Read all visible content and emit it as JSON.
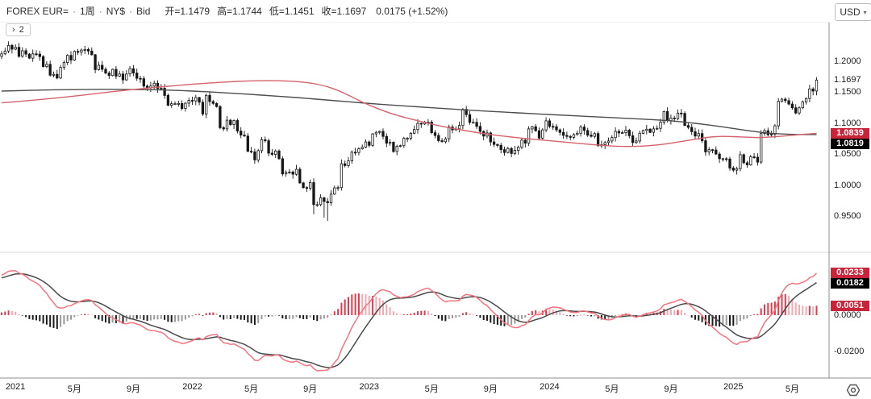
{
  "header": {
    "symbol": "FOREX EUR=",
    "sep": "·",
    "interval": "1周",
    "session": "NY$",
    "price_type": "Bid",
    "fields": [
      {
        "text": "开=1.1479"
      },
      {
        "text": "高=1.1744"
      },
      {
        "text": "低=1.1451"
      },
      {
        "text": "收=1.1697"
      }
    ],
    "change": "0.0175 (+1.52%)",
    "currency_selector": {
      "label": "USD",
      "chevron": "⌄"
    }
  },
  "pane_badge": {
    "chevron": "›",
    "count": "2"
  },
  "price_axis": {
    "current_label": "1.1697",
    "ma_badges": [
      {
        "text": "1.0839",
        "style": "red"
      },
      {
        "text": "1.0819",
        "style": "black"
      }
    ]
  },
  "macd_axis": {
    "badges": [
      {
        "text": "0.0233",
        "style": "red"
      },
      {
        "text": "0.0182",
        "style": "black"
      },
      {
        "text": "0.0051",
        "style": "red"
      }
    ]
  },
  "colors": {
    "badge_red": "#c9243a",
    "badge_black": "#000000",
    "candle": "#161616",
    "ma_red": "#d5626c",
    "ma_dark": "#4d4d4d",
    "macd_red": "#f4737e",
    "macd_dark": "#4a4a4a",
    "hist_pos_strong": "#e23b4d",
    "hist_pos_weak": "#f5a9b1",
    "hist_neg_strong": "#1c1c1c",
    "hist_neg_weak": "#9a9a9a",
    "axis_line": "#8f8f8f",
    "pane_divider": "#d8d8d8"
  },
  "chart_data": {
    "type": "candlestick",
    "title": "FOREX EUR= 1周 NY$ Bid",
    "interval": "weekly",
    "legend_position": "none",
    "grid": false,
    "price_pane": {
      "yticks": [
        1.2,
        1.15,
        1.1,
        1.05,
        1.0,
        0.95
      ],
      "ylim": [
        0.905,
        1.263
      ],
      "current_close": 1.1697,
      "last_candle": {
        "open": 1.1479,
        "high": 1.1744,
        "low": 1.1451,
        "close": 1.1697
      },
      "low_overrides": [
        {
          "index": 90,
          "low": 0.9535
        },
        {
          "index": 93,
          "low": 0.948
        },
        {
          "index": 94,
          "low": 0.943
        }
      ],
      "first_open": 1.208,
      "closes": [
        1.212,
        1.2165,
        1.2255,
        1.2195,
        1.2225,
        1.208,
        1.217,
        1.2115,
        1.205,
        1.212,
        1.2115,
        1.2075,
        1.1915,
        1.195,
        1.1775,
        1.179,
        1.173,
        1.19,
        1.198,
        1.2095,
        1.202,
        1.216,
        1.2145,
        1.218,
        1.219,
        1.2165,
        1.2105,
        1.1865,
        1.1935,
        1.187,
        1.181,
        1.177,
        1.187,
        1.176,
        1.1795,
        1.17,
        1.1795,
        1.188,
        1.181,
        1.1725,
        1.172,
        1.16,
        1.157,
        1.16,
        1.1645,
        1.156,
        1.1565,
        1.145,
        1.129,
        1.1315,
        1.1315,
        1.132,
        1.124,
        1.1325,
        1.137,
        1.136,
        1.1415,
        1.134,
        1.115,
        1.145,
        1.135,
        1.132,
        1.127,
        1.093,
        1.091,
        1.105,
        1.098,
        1.1045,
        1.0875,
        1.081,
        1.0795,
        1.055,
        1.054,
        1.041,
        1.056,
        1.0735,
        1.072,
        1.052,
        1.05,
        1.0555,
        1.043,
        1.0185,
        1.021,
        1.0215,
        1.018,
        1.026,
        1.004,
        0.9965,
        0.9955,
        1.0045,
        0.969,
        0.969,
        0.98,
        0.974,
        0.972,
        0.986,
        0.996,
        0.9965,
        1.035,
        1.032,
        1.0395,
        1.0535,
        1.053,
        1.059,
        1.0615,
        1.07,
        1.0645,
        1.083,
        1.0855,
        1.087,
        1.079,
        1.068,
        1.0695,
        1.0545,
        1.063,
        1.064,
        1.076,
        1.076,
        1.084,
        1.09,
        1.1,
        1.099,
        1.102,
        1.102,
        1.085,
        1.0805,
        1.072,
        1.0705,
        1.075,
        1.094,
        1.0895,
        1.091,
        1.0965,
        1.1225,
        1.114,
        1.1015,
        1.1015,
        1.095,
        1.087,
        1.0795,
        1.0845,
        1.07,
        1.066,
        1.0645,
        1.0575,
        1.053,
        1.0595,
        1.0515,
        1.0565,
        1.0615,
        1.073,
        1.068,
        1.091,
        1.0945,
        1.088,
        1.076,
        1.0895,
        1.104,
        1.095,
        1.0945,
        1.0895,
        1.0855,
        1.0805,
        1.079,
        1.0775,
        1.082,
        1.084,
        1.094,
        1.0885,
        1.081,
        1.079,
        1.0835,
        1.064,
        1.0655,
        1.069,
        1.0715,
        1.077,
        1.087,
        1.0845,
        1.085,
        1.089,
        1.08,
        1.069,
        1.0715,
        1.084,
        1.0885,
        1.0905,
        1.0855,
        1.091,
        1.092,
        1.102,
        1.119,
        1.1045,
        1.1085,
        1.1075,
        1.1165,
        1.116,
        1.0965,
        1.0935,
        1.0865,
        1.0795,
        1.0835,
        1.072,
        1.054,
        1.0575,
        1.057,
        1.0505,
        1.043,
        1.043,
        1.0425,
        1.028,
        1.0245,
        1.027,
        1.0495,
        1.0365,
        1.033,
        1.046,
        1.0455,
        1.0375,
        1.0835,
        1.088,
        1.0815,
        1.0825,
        1.096,
        1.1355,
        1.139,
        1.1365,
        1.131,
        1.125,
        1.1165,
        1.125,
        1.1345,
        1.14,
        1.1555,
        1.152,
        1.1697
      ],
      "ma_red": {
        "last_value": 1.0839,
        "control_points": [
          [
            0,
            1.133
          ],
          [
            8,
            1.1368
          ],
          [
            16,
            1.141
          ],
          [
            24,
            1.1458
          ],
          [
            32,
            1.151
          ],
          [
            40,
            1.1556
          ],
          [
            48,
            1.1598
          ],
          [
            56,
            1.1634
          ],
          [
            62,
            1.1656
          ],
          [
            68,
            1.1675
          ],
          [
            74,
            1.1686
          ],
          [
            80,
            1.1686
          ],
          [
            86,
            1.1668
          ],
          [
            91,
            1.163
          ],
          [
            95,
            1.157
          ],
          [
            99,
            1.148
          ],
          [
            103,
            1.137
          ],
          [
            107,
            1.127
          ],
          [
            112,
            1.1165
          ],
          [
            118,
            1.107
          ],
          [
            125,
            1.0975
          ],
          [
            133,
            1.089
          ],
          [
            141,
            1.082
          ],
          [
            149,
            1.0768
          ],
          [
            157,
            1.0725
          ],
          [
            165,
            1.0685
          ],
          [
            172,
            1.065
          ],
          [
            179,
            1.0628
          ],
          [
            186,
            1.0638
          ],
          [
            192,
            1.0672
          ],
          [
            198,
            1.0725
          ],
          [
            203,
            1.077
          ],
          [
            207,
            1.0788
          ],
          [
            211,
            1.0786
          ],
          [
            215,
            1.0776
          ],
          [
            219,
            1.0772
          ],
          [
            223,
            1.0784
          ],
          [
            227,
            1.0802
          ],
          [
            231,
            1.0822
          ],
          [
            235,
            1.0839
          ]
        ]
      },
      "ma_dark": {
        "last_value": 1.0819,
        "control_points": [
          [
            0,
            1.152
          ],
          [
            15,
            1.154
          ],
          [
            30,
            1.1548
          ],
          [
            45,
            1.154
          ],
          [
            55,
            1.152
          ],
          [
            65,
            1.149
          ],
          [
            75,
            1.1455
          ],
          [
            85,
            1.1415
          ],
          [
            95,
            1.137
          ],
          [
            105,
            1.1325
          ],
          [
            115,
            1.1285
          ],
          [
            125,
            1.1248
          ],
          [
            135,
            1.1212
          ],
          [
            145,
            1.118
          ],
          [
            155,
            1.115
          ],
          [
            165,
            1.1122
          ],
          [
            175,
            1.1095
          ],
          [
            185,
            1.1068
          ],
          [
            193,
            1.104
          ],
          [
            200,
            1.1
          ],
          [
            207,
            1.095
          ],
          [
            214,
            1.0892
          ],
          [
            220,
            1.0848
          ],
          [
            225,
            1.0828
          ],
          [
            230,
            1.082
          ],
          [
            235,
            1.0819
          ]
        ]
      }
    },
    "macd_pane": {
      "type": "macd",
      "fast": 12,
      "slow": 26,
      "signal_period": 9,
      "yticks": [
        0.0,
        -0.02
      ],
      "last_values": {
        "macd": 0.0233,
        "signal": 0.0182,
        "histogram": 0.0051
      },
      "pre_window_closes": [
        1.082,
        1.09,
        1.086,
        1.089,
        1.097,
        1.1,
        1.11,
        1.125,
        1.131,
        1.128,
        1.124,
        1.13,
        1.139,
        1.142,
        1.151,
        1.16,
        1.165,
        1.17,
        1.172,
        1.178,
        1.183,
        1.18,
        1.178,
        1.169,
        1.165,
        1.172,
        1.18,
        1.186,
        1.195,
        1.205
      ]
    },
    "x_labels": [
      {
        "text": "2021",
        "index": 4
      },
      {
        "text": "5月",
        "index": 21
      },
      {
        "text": "9月",
        "index": 38
      },
      {
        "text": "2022",
        "index": 55
      },
      {
        "text": "5月",
        "index": 72
      },
      {
        "text": "9月",
        "index": 89
      },
      {
        "text": "2023",
        "index": 106
      },
      {
        "text": "5月",
        "index": 124
      },
      {
        "text": "9月",
        "index": 141
      },
      {
        "text": "2024",
        "index": 158
      },
      {
        "text": "5月",
        "index": 176
      },
      {
        "text": "9月",
        "index": 193
      },
      {
        "text": "2025",
        "index": 211
      },
      {
        "text": "5月",
        "index": 228
      }
    ]
  }
}
